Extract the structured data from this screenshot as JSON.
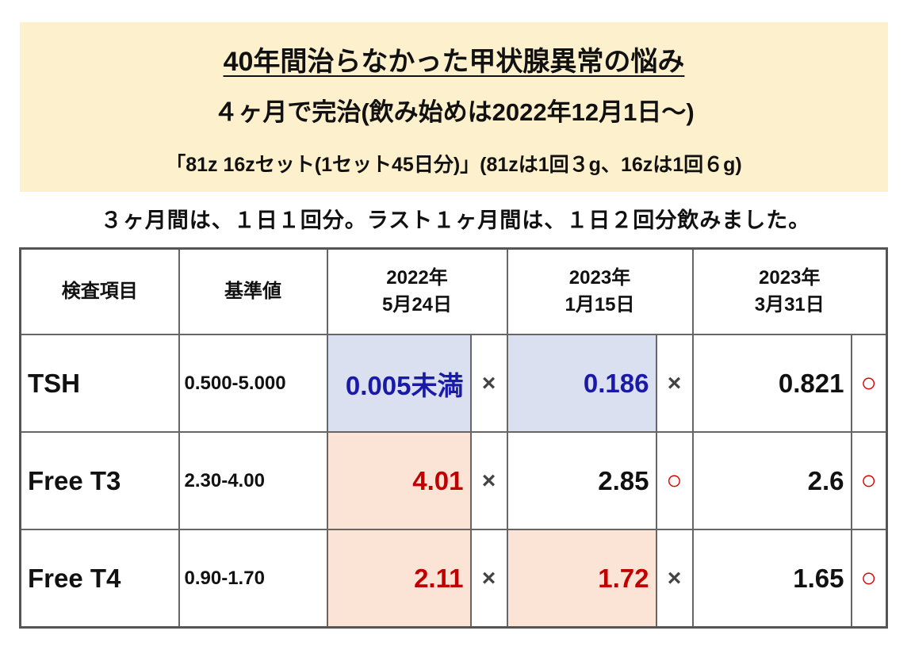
{
  "header": {
    "title": "40年間治らなかった甲状腺異常の悩み",
    "subtitle": "４ヶ月で完治(飲み始めは2022年12月1日～)",
    "set": "「81z 16zセット(1セット45日分)」(81zは1回３g、16zは1回６g)"
  },
  "note": "３ヶ月間は、１日１回分。ラスト１ヶ月間は、１日２回分飲みました。",
  "table": {
    "columns": [
      "検査項目",
      "基準値",
      [
        "2022年",
        "5月24日"
      ],
      [
        "2023年",
        "1月15日"
      ],
      [
        "2023年",
        "3月31日"
      ]
    ],
    "rows": [
      [
        "TSH",
        "0.500-5.000",
        "0.005未満",
        "×",
        "0.186",
        "×",
        "0.821",
        "○"
      ],
      [
        "Free T3",
        "2.30-4.00",
        "4.01",
        "×",
        "2.85",
        "○",
        "2.6",
        "○"
      ],
      [
        "Free T4",
        "0.90-1.70",
        "2.11",
        "×",
        "1.72",
        "×",
        "1.65",
        "○"
      ]
    ]
  }
}
